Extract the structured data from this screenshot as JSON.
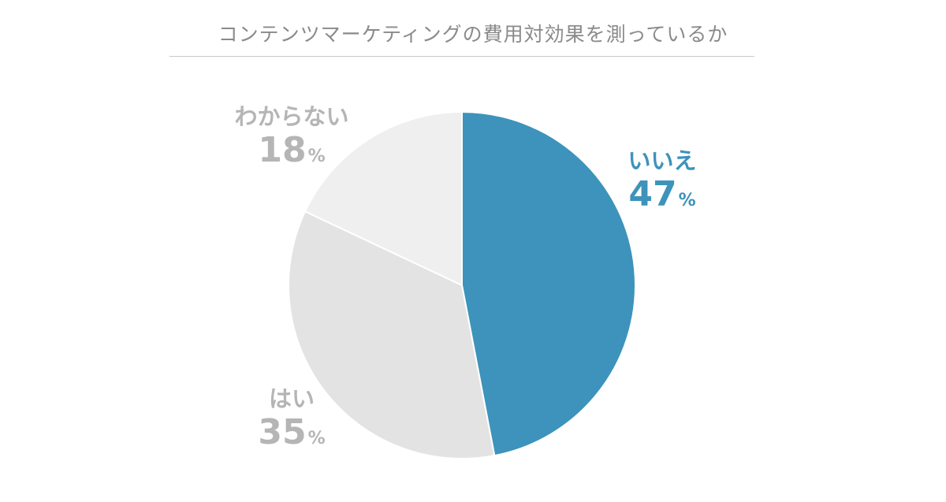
{
  "chart_data": {
    "type": "pie",
    "title": "コンテンツマーケティングの費用対効果を測っているか",
    "slices": [
      {
        "label": "いいえ",
        "value": 47,
        "display": "47",
        "unit": "%",
        "color": "#3d93bb",
        "label_color": "#3d93bb"
      },
      {
        "label": "はい",
        "value": 35,
        "display": "35",
        "unit": "%",
        "color": "#e3e3e3",
        "label_color": "#b5b5b5"
      },
      {
        "label": "わからない",
        "value": 18,
        "display": "18",
        "unit": "%",
        "color": "#efefef",
        "label_color": "#b5b5b5"
      }
    ],
    "start": "12 o'clock",
    "direction": "clockwise",
    "legend": "none"
  }
}
